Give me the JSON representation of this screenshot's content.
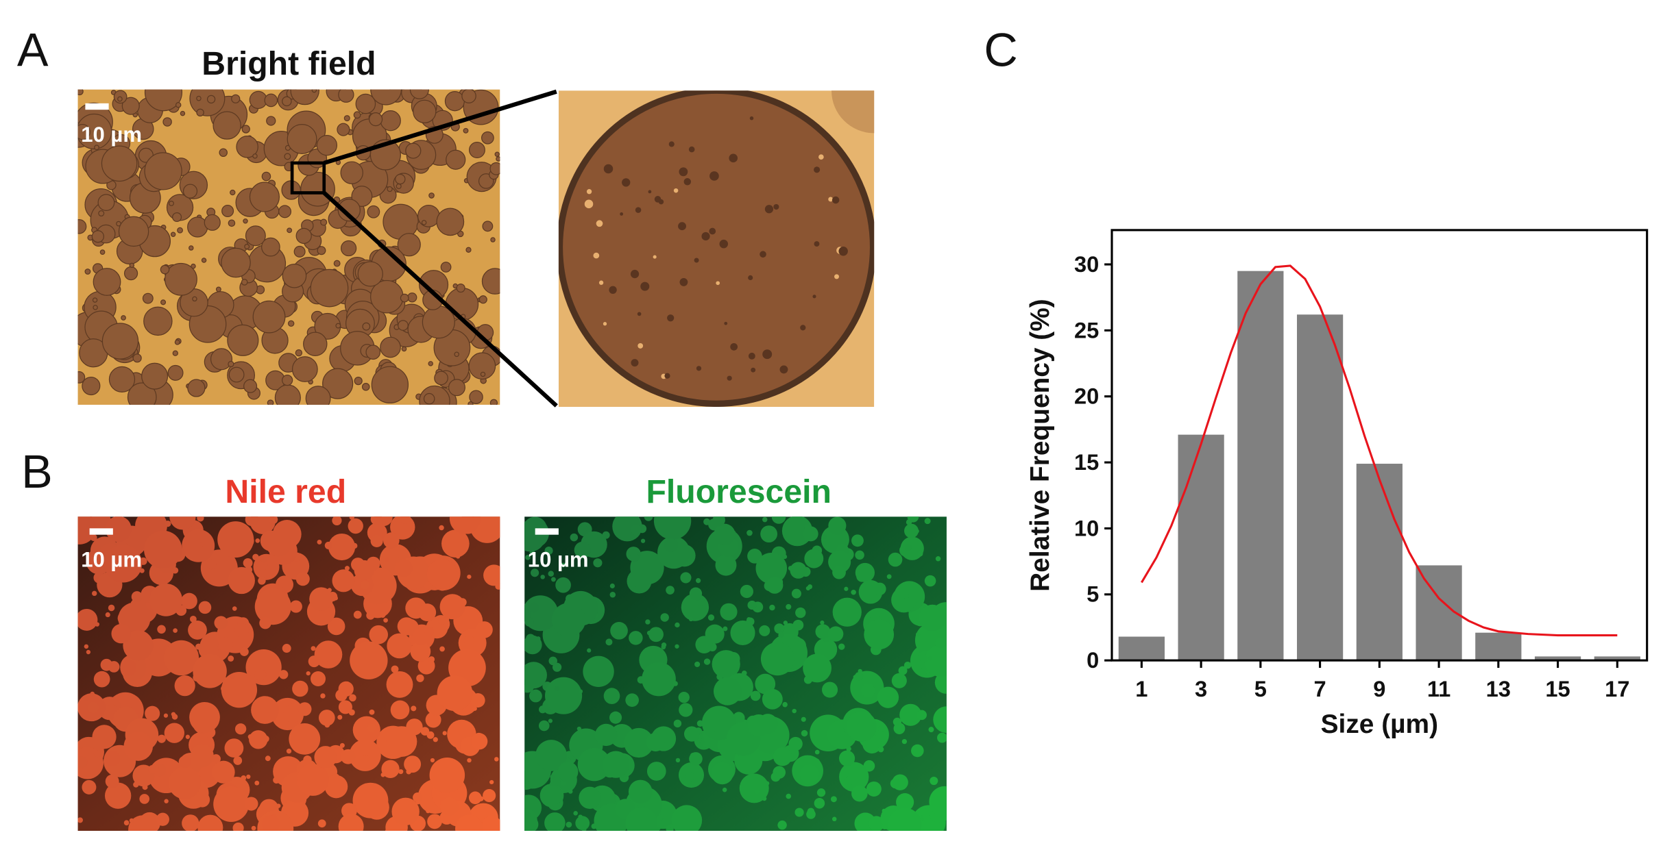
{
  "panels": {
    "A": {
      "label": "A",
      "title": "Bright field",
      "scale_bar": "10 µm"
    },
    "B": {
      "label": "B",
      "images": [
        {
          "title": "Nile red",
          "scale_bar": "10 µm"
        },
        {
          "title": "Fluorescein",
          "scale_bar": "10 µm"
        }
      ]
    },
    "C": {
      "label": "C"
    }
  },
  "chart_data": {
    "type": "bar",
    "xlabel": "Size (µm)",
    "ylabel": "Relative Frequency (%)",
    "x": [
      1,
      3,
      5,
      7,
      9,
      11,
      13,
      15,
      17
    ],
    "values": [
      1.8,
      17.1,
      29.5,
      26.2,
      14.9,
      7.2,
      2.1,
      0.3,
      0.3
    ],
    "color": "#808080",
    "xlim": [
      0,
      18
    ],
    "xticks": [
      1,
      3,
      5,
      7,
      9,
      11,
      13,
      15,
      17
    ],
    "ylim": [
      0,
      32.6
    ],
    "yticks": [
      0,
      5,
      10,
      15,
      20,
      25,
      30
    ],
    "fit": {
      "type": "line",
      "color": "#e8141c",
      "x": [
        1,
        1.5,
        2,
        2.5,
        3,
        3.5,
        4,
        4.5,
        5,
        5.5,
        6,
        6.5,
        7,
        7.5,
        8,
        8.5,
        9,
        9.5,
        10,
        10.5,
        11,
        11.5,
        12,
        12.5,
        13,
        14,
        15,
        16,
        17
      ],
      "values": [
        5.9,
        7.8,
        10.2,
        13.1,
        16.4,
        19.9,
        23.3,
        26.3,
        28.5,
        29.8,
        29.9,
        28.9,
        26.8,
        23.9,
        20.6,
        17.0,
        13.7,
        10.7,
        8.2,
        6.2,
        4.7,
        3.7,
        3.0,
        2.5,
        2.2,
        2.0,
        1.9,
        1.9,
        1.9
      ]
    }
  }
}
